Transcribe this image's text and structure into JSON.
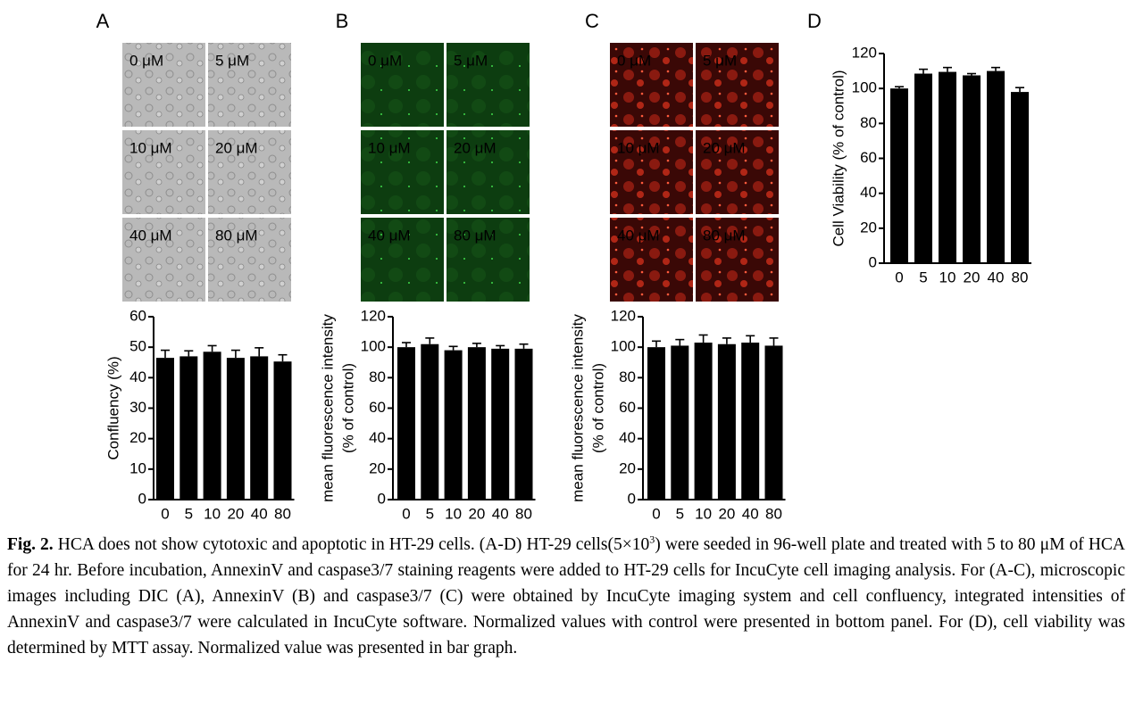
{
  "panels": [
    {
      "letter": "A",
      "tiles": [
        "0 μM",
        "5 μM",
        "10 μM",
        "20 μM",
        "40 μM",
        "80 μM"
      ]
    },
    {
      "letter": "B",
      "tiles": [
        "0 μM",
        "5 μM",
        "10 μM",
        "20 μM",
        "40 μM",
        "80 μM"
      ]
    },
    {
      "letter": "C",
      "tiles": [
        "0 μM",
        "5 μM",
        "10 μM",
        "20 μM",
        "40 μM",
        "80 μM"
      ]
    },
    {
      "letter": "D"
    }
  ],
  "chart_data": [
    {
      "type": "bar",
      "ylabel": [
        "Confluency (%)"
      ],
      "categories": [
        "0",
        "5",
        "10",
        "20",
        "40",
        "80"
      ],
      "values": [
        46.5,
        47,
        48.5,
        46.5,
        47,
        45.3
      ],
      "errors": [
        2.5,
        1.8,
        2,
        2.5,
        2.8,
        2.2
      ],
      "color": "#000000",
      "ylim": [
        0,
        60
      ],
      "yticks": [
        0,
        10,
        20,
        30,
        40,
        50,
        60
      ]
    },
    {
      "type": "bar",
      "ylabel": [
        "mean fluorescence intensity",
        "(% of control)"
      ],
      "categories": [
        "0",
        "5",
        "10",
        "20",
        "40",
        "80"
      ],
      "values": [
        100,
        102,
        98,
        100,
        99,
        99
      ],
      "errors": [
        3,
        4,
        2.5,
        2.5,
        2,
        3
      ],
      "color": "#000000",
      "ylim": [
        0,
        120
      ],
      "yticks": [
        0,
        20,
        40,
        60,
        80,
        100,
        120
      ]
    },
    {
      "type": "bar",
      "ylabel": [
        "mean fluorescence intensity",
        "(% of control)"
      ],
      "categories": [
        "0",
        "5",
        "10",
        "20",
        "40",
        "80"
      ],
      "values": [
        100,
        101,
        103,
        102,
        103,
        101
      ],
      "errors": [
        4,
        4,
        5,
        4,
        4.5,
        5
      ],
      "color": "#000000",
      "ylim": [
        0,
        120
      ],
      "yticks": [
        0,
        20,
        40,
        60,
        80,
        100,
        120
      ]
    },
    {
      "type": "bar",
      "ylabel": [
        "Cell Viability (% of control)"
      ],
      "categories": [
        "0",
        "5",
        "10",
        "20",
        "40",
        "80"
      ],
      "values": [
        100,
        108.5,
        109.5,
        107.5,
        110,
        98
      ],
      "errors": [
        1,
        2.5,
        2.5,
        1,
        2,
        2.5
      ],
      "color": "#000000",
      "ylim": [
        0,
        120
      ],
      "yticks": [
        0,
        20,
        40,
        60,
        80,
        100,
        120
      ]
    }
  ],
  "caption": {
    "label": "Fig. 2.",
    "text_before": "HCA does not show cytotoxic and apoptotic in HT-29 cells. (A-D) HT-29 cells(5×10",
    "superscript": "3",
    "text_after": ") were seeded in 96-well plate and treated with 5 to 80 μM of HCA for 24 hr. Before incubation, AnnexinV and caspase3/7 staining reagents were added to HT-29 cells for IncuCyte cell imaging analysis. For (A-C), microscopic images including DIC (A), AnnexinV (B) and caspase3/7 (C) were obtained by IncuCyte imaging system and cell confluency, integrated intensities of AnnexinV and caspase3/7 were calculated in IncuCyte software. Normalized values with control were presented in bottom panel. For (D), cell viability was determined by MTT assay. Normalized value was presented in bar graph."
  }
}
